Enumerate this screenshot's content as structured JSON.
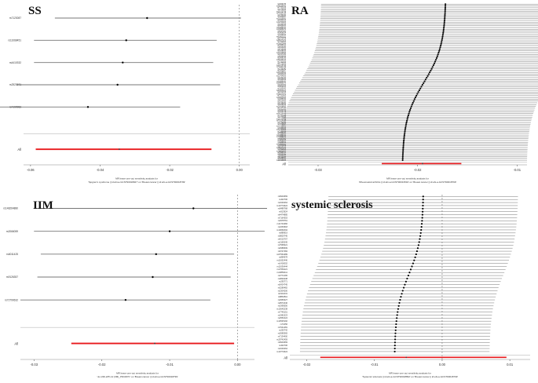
{
  "chart_data": [
    {
      "type": "forest",
      "panel_label": "SS",
      "snps": [
        "rs7123087",
        "rs11068451",
        "rs4410332",
        "rs2523971",
        "rs7199983"
      ],
      "estimates": [
        -0.0265,
        -0.0325,
        -0.0335,
        -0.035,
        -0.0435
      ],
      "lower": [
        -0.053,
        -0.059,
        -0.059,
        -0.064,
        -0.07
      ],
      "upper": [
        0.0005,
        -0.0065,
        -0.0075,
        -0.0055,
        -0.017
      ],
      "all_label": "All",
      "all": {
        "estimate": -0.0345,
        "lower": -0.0585,
        "upper": -0.008
      },
      "xlim": [
        -0.062,
        0.003
      ],
      "xticks": [
        -0.06,
        -0.04,
        -0.02,
        0.0
      ],
      "xtick_labels": [
        "-0.06",
        "-0.04",
        "-0.02",
        "0.00"
      ],
      "xlabel_lines": [
        "MR leave-one-out sensitivity analysis for",
        "'Sjogren's syndrome || id:ebi-a-GCST90018927' on 'Breast cancer || id:ebi-a-GCST90018799'"
      ]
    },
    {
      "type": "forest",
      "panel_label": "RA",
      "n_snps": 88,
      "snps_top": [
        "rs2069235",
        "rs34536443",
        "rs7731626",
        "rs4272626",
        "rs10175798",
        "rs71624119",
        "rs2736340",
        "rs1950897",
        "rs13315591",
        "rs3093023",
        "rs12764926",
        "rs2233434",
        "rs6496669",
        "rs11889341",
        "rs10985070",
        "rs4937362",
        "rs3806624",
        "rs1160542",
        "rs61802321",
        "rs1571878",
        "rs35677470",
        "rs7752903",
        "rs10821944",
        "rs2285934",
        "rs4810485",
        "rs6715284",
        "rs9268839",
        "rs12416905",
        "rs2317230",
        "rs9936059"
      ],
      "estimate_range": [
        -0.0215,
        -0.0172
      ],
      "ci_halfwidth": 0.0125,
      "all_label": "All",
      "all": {
        "estimate": -0.0195,
        "lower": -0.0236,
        "upper": -0.0156
      },
      "xlim": [
        -0.033,
        -0.009
      ],
      "xticks": [
        -0.03,
        -0.02,
        -0.01
      ],
      "xtick_labels": [
        "-0.03",
        "-0.02",
        "-0.01"
      ],
      "xlabel_lines": [
        "MR leave-one-out sensitivity analysis for",
        "'Rheumatoid arthritis || id:ebi-a-GCST90013534' on 'Breast cancer || id:ebi-a-GCST90018799'"
      ]
    },
    {
      "type": "forest",
      "panel_label": "IIM",
      "snps": [
        "rs148264880",
        "rs2066059",
        "rs6011425",
        "rs9126357",
        "rs72790632"
      ],
      "estimates": [
        -0.0065,
        -0.01,
        -0.012,
        -0.0125,
        -0.0165
      ],
      "lower": [
        -0.03,
        -0.03,
        -0.029,
        -0.0295,
        -0.032
      ],
      "upper": [
        0.0075,
        0.004,
        -0.0005,
        -0.001,
        -0.004
      ],
      "all_label": "All",
      "all": {
        "estimate": -0.0122,
        "lower": -0.0245,
        "upper": -0.0005
      },
      "xlim": [
        -0.032,
        0.0025
      ],
      "xticks": [
        -0.03,
        -0.02,
        -0.01,
        0.0
      ],
      "xtick_labels": [
        "-0.03",
        "-0.02",
        "-0.01",
        "0.00"
      ],
      "xlabel_lines": [
        "MR leave-one-out sensitivity analysis for",
        "'Jo-1/Mi-2/Pl-12 (IIM)_PDCRPC' on 'Breast cancer || id:ebi-a-GCST90018799'"
      ]
    },
    {
      "type": "forest",
      "panel_label": "systemic sclerosis",
      "n_snps": 52,
      "snps_top": [
        "rs6944669",
        "rs402706",
        "rs1640264",
        "rs10774624",
        "rs9489768",
        "rs913924",
        "rs4474885",
        "rs7164353",
        "rs2978761",
        "rs11744282",
        "rs1054518",
        "rs10052094",
        "rs889919",
        "rs9829745",
        "rs4215757",
        "rs2169245",
        "rs7565621",
        "rs4589509",
        "rs6747484",
        "rs67564489",
        "rs884678",
        "rs11652446",
        "rs1416002",
        "rs11636444",
        "rs17681121",
        "rs10856411",
        "rs3772165",
        "rs3829438",
        "rs295771",
        "rs5424745",
        "rs3289482",
        "rs2304200",
        "rs1911031",
        "rs8862811",
        "rs2959327",
        "rs9571646",
        "rs1999556",
        "rs13645238",
        "rs7745151",
        "rs1981523",
        "rs2551024",
        "rs13525192",
        "rs71056",
        "rs7641481",
        "rs255742",
        "rs2680565",
        "rs7134400",
        "rs29742459"
      ],
      "estimate_range": [
        -0.007,
        -0.0028
      ],
      "ci_halfwidth": 0.014,
      "all_label": "All",
      "all": {
        "estimate": -0.0053,
        "lower": -0.018,
        "upper": 0.0095
      },
      "xlim": [
        -0.0225,
        0.013
      ],
      "xticks": [
        -0.02,
        -0.01,
        0.0,
        0.01
      ],
      "xtick_labels": [
        "-0.02",
        "-0.01",
        "0.00",
        "0.01"
      ],
      "xlabel_lines": [
        "MR leave-one-out sensitivity analysis for",
        "'Systemic sclerosis || id:ebi-a-GCST90018892' on 'Breast cancer || id:ebi-a-GCST90018799'"
      ]
    }
  ]
}
